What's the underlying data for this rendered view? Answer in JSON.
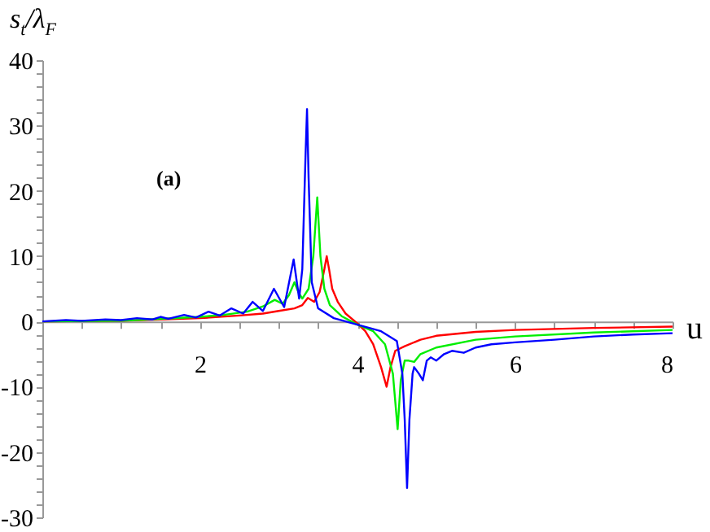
{
  "chart_data": {
    "type": "line",
    "xlabel": "u",
    "ylabel": "s$_{t}$/λ$_{F}$",
    "annotations": [
      "(a)"
    ],
    "xlim": [
      0,
      8
    ],
    "ylim": [
      -30,
      40
    ],
    "xticks": [
      {
        "value": 0.5,
        "label": null
      },
      {
        "value": 1,
        "label": null
      },
      {
        "value": 1.5,
        "label": null
      },
      2,
      {
        "value": 2.5,
        "label": null
      },
      {
        "value": 3,
        "label": null
      },
      {
        "value": 3.5,
        "label": null
      },
      4,
      {
        "value": 4.5,
        "label": null
      },
      {
        "value": 5,
        "label": null
      },
      {
        "value": 5.5,
        "label": null
      },
      6,
      {
        "value": 6.5,
        "label": null
      },
      {
        "value": 7,
        "label": null
      },
      {
        "value": 7.5,
        "label": null
      },
      8
    ],
    "yticks": [
      -30,
      {
        "value": -28,
        "label": null
      },
      {
        "value": -26,
        "label": null
      },
      {
        "value": -24,
        "label": null
      },
      {
        "value": -22,
        "label": null
      },
      -20,
      {
        "value": -18,
        "label": null
      },
      {
        "value": -16,
        "label": null
      },
      {
        "value": -14,
        "label": null
      },
      {
        "value": -12,
        "label": null
      },
      -10,
      {
        "value": -8,
        "label": null
      },
      {
        "value": -6,
        "label": null
      },
      {
        "value": -4,
        "label": null
      },
      {
        "value": -2,
        "label": null
      },
      0,
      {
        "value": 2,
        "label": null
      },
      {
        "value": 4,
        "label": null
      },
      {
        "value": 6,
        "label": null
      },
      {
        "value": 8,
        "label": null
      },
      10,
      {
        "value": 12,
        "label": null
      },
      {
        "value": 14,
        "label": null
      },
      {
        "value": 16,
        "label": null
      },
      {
        "value": 18,
        "label": null
      },
      20,
      {
        "value": 22,
        "label": null
      },
      {
        "value": 24,
        "label": null
      },
      {
        "value": 26,
        "label": null
      },
      {
        "value": 28,
        "label": null
      },
      30,
      {
        "value": 32,
        "label": null
      },
      {
        "value": 34,
        "label": null
      },
      {
        "value": 36,
        "label": null
      },
      {
        "value": 38,
        "label": null
      },
      40
    ],
    "grid": false,
    "legend": false,
    "marker": "none",
    "line_style": "solid",
    "series": [
      {
        "color": "#ff0000",
        "x": [
          0,
          1,
          1.5,
          2,
          2.5,
          2.8,
          3.0,
          3.2,
          3.3,
          3.37,
          3.45,
          3.52,
          3.58,
          3.61,
          3.64,
          3.68,
          3.75,
          3.85,
          4.0,
          4.1,
          4.2,
          4.3,
          4.37,
          4.42,
          4.48,
          4.6,
          4.8,
          5.0,
          5.5,
          6,
          7,
          8
        ],
        "values": [
          0,
          0.1,
          0.3,
          0.5,
          0.9,
          1.2,
          1.6,
          2.0,
          2.5,
          3.6,
          3.0,
          4.5,
          8,
          10,
          8,
          5,
          3,
          1.2,
          -0.3,
          -1.5,
          -3.5,
          -7,
          -10,
          -7,
          -4.5,
          -3.8,
          -2.8,
          -2.2,
          -1.6,
          -1.3,
          -1.0,
          -0.8
        ]
      },
      {
        "color": "#00ee00",
        "x": [
          0,
          1,
          1.5,
          2,
          2.3,
          2.6,
          2.8,
          2.95,
          3.05,
          3.13,
          3.2,
          3.25,
          3.3,
          3.38,
          3.44,
          3.49,
          3.53,
          3.58,
          3.65,
          3.8,
          4.0,
          4.2,
          4.35,
          4.45,
          4.51,
          4.55,
          4.6,
          4.65,
          4.72,
          4.8,
          5.0,
          5.5,
          6,
          7,
          8
        ],
        "values": [
          0,
          0.1,
          0.4,
          0.7,
          1,
          1.5,
          2.3,
          3.3,
          2.7,
          4,
          6,
          4.5,
          3.5,
          5,
          10,
          19,
          10,
          5,
          2.5,
          0.8,
          -0.5,
          -1.5,
          -3.5,
          -8,
          -16.5,
          -9,
          -6,
          -6,
          -6.2,
          -5,
          -4,
          -2.8,
          -2.3,
          -1.7,
          -1.3
        ]
      },
      {
        "color": "#0000ff",
        "x": [
          0,
          0.3,
          0.5,
          0.8,
          1.0,
          1.2,
          1.4,
          1.5,
          1.6,
          1.8,
          1.95,
          2.11,
          2.25,
          2.4,
          2.55,
          2.67,
          2.8,
          2.94,
          3.07,
          3.19,
          3.26,
          3.3,
          3.34,
          3.36,
          3.38,
          3.42,
          3.5,
          3.7,
          4.0,
          4.3,
          4.5,
          4.57,
          4.6,
          4.63,
          4.66,
          4.7,
          4.72,
          4.78,
          4.83,
          4.88,
          4.93,
          5.0,
          5.1,
          5.2,
          5.35,
          5.5,
          5.7,
          6.0,
          6.5,
          7,
          7.5,
          8
        ],
        "values": [
          0,
          0.2,
          0.1,
          0.3,
          0.2,
          0.5,
          0.3,
          0.7,
          0.4,
          1.0,
          0.6,
          1.5,
          0.9,
          2.0,
          1.2,
          3.0,
          1.6,
          5.0,
          2.2,
          9.5,
          3.5,
          8,
          25,
          32.5,
          22,
          6,
          2,
          0.5,
          -0.5,
          -1.5,
          -3,
          -8,
          -15,
          -25.5,
          -15,
          -8,
          -7,
          -8,
          -9,
          -6,
          -5.5,
          -6,
          -5,
          -4.5,
          -4.8,
          -4,
          -3.5,
          -3.2,
          -2.8,
          -2.3,
          -2,
          -1.8
        ]
      }
    ]
  }
}
